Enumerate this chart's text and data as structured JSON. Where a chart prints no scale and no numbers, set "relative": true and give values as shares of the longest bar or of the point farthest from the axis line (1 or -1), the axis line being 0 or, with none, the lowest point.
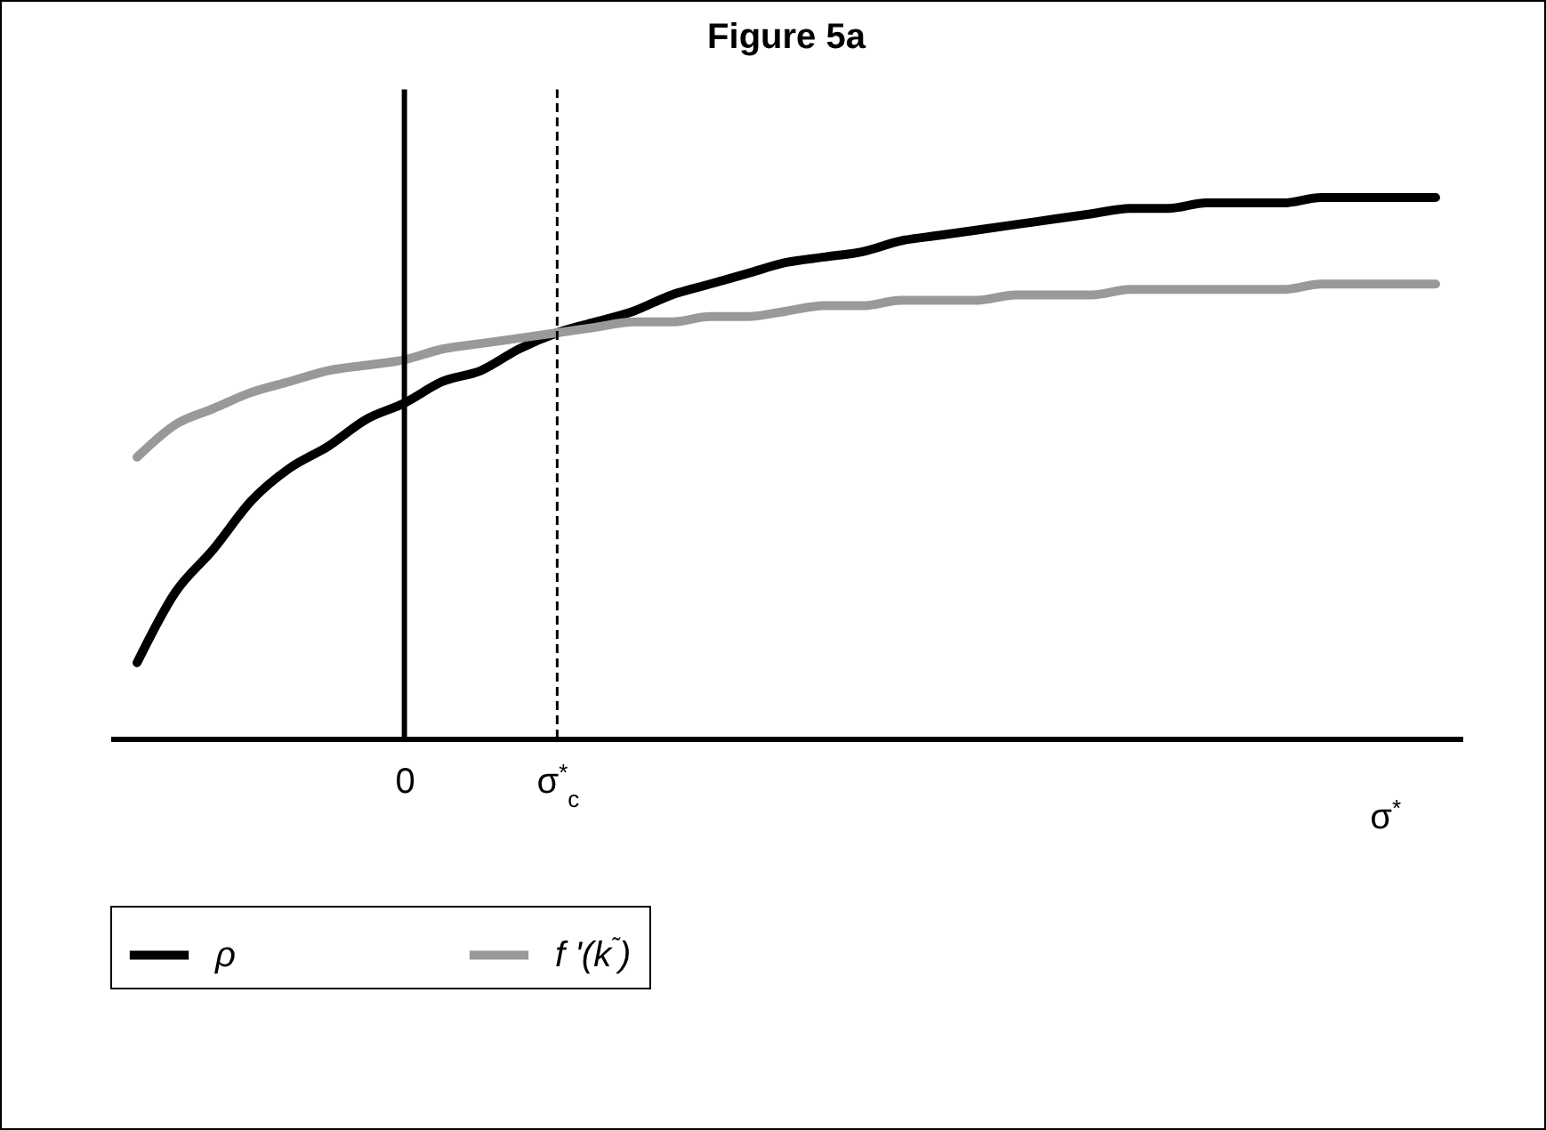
{
  "chart_data": {
    "type": "line",
    "title": "Figure 5a",
    "xlabel": "σ$^{*}$",
    "relative": true,
    "tick_labels": "x",
    "categories": [
      null,
      null,
      null,
      null,
      null,
      null,
      null,
      "0",
      null,
      null,
      null,
      "σ$^{*}$$_{c}$",
      null,
      null,
      null,
      null,
      null,
      null,
      null,
      null,
      null,
      null,
      null,
      null,
      null,
      null,
      null,
      null,
      null,
      null,
      null,
      null,
      null,
      null,
      null
    ],
    "series": [
      {
        "name": "ρ",
        "color": "#000000",
        "values": [
          0.14,
          0.27,
          0.35,
          0.44,
          0.5,
          0.54,
          0.59,
          0.62,
          0.66,
          0.68,
          0.72,
          0.75,
          0.77,
          0.79,
          0.82,
          0.84,
          0.86,
          0.88,
          0.89,
          0.9,
          0.92,
          0.93,
          0.94,
          0.95,
          0.96,
          0.97,
          0.98,
          0.98,
          0.99,
          0.99,
          0.99,
          1,
          1,
          1,
          1
        ]
      },
      {
        "name": "f '(k$^{˜}$)",
        "color": "#999999",
        "values": [
          0.52,
          0.58,
          0.61,
          0.64,
          0.66,
          0.68,
          0.69,
          0.7,
          0.72,
          0.73,
          0.74,
          0.75,
          0.76,
          0.77,
          0.77,
          0.78,
          0.78,
          0.79,
          0.8,
          0.8,
          0.81,
          0.81,
          0.81,
          0.82,
          0.82,
          0.82,
          0.83,
          0.83,
          0.83,
          0.83,
          0.83,
          0.84,
          0.84,
          0.84,
          0.84
        ]
      }
    ],
    "ref_lines": [
      {
        "axis": "x",
        "value": "0",
        "line_style": "solid",
        "color": "#000000"
      },
      {
        "axis": "x",
        "value": "σ$^{*}$$_{c}$",
        "line_style": "dashed",
        "color": "#000000"
      }
    ],
    "legend": "bottom",
    "line_style": "solid"
  }
}
